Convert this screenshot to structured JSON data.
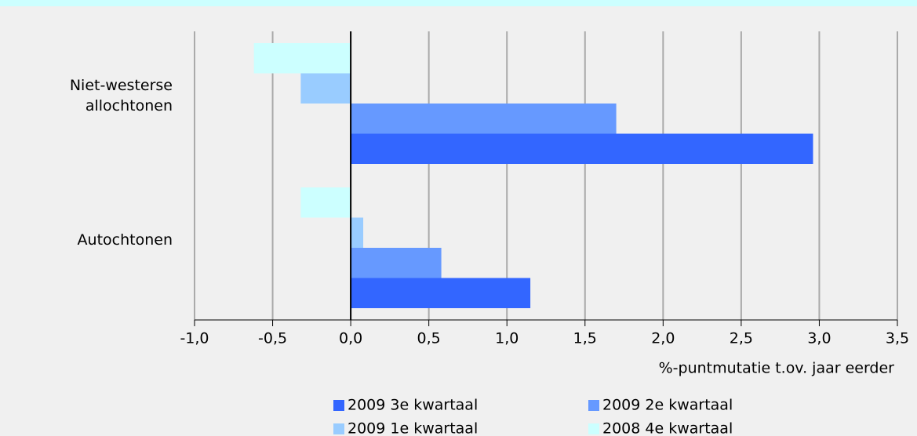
{
  "chart_data": {
    "type": "bar",
    "orientation": "horizontal",
    "categories": [
      "Niet-westerse allochtonen",
      "Autochtonen"
    ],
    "series": [
      {
        "name": "2009 3e kwartaal",
        "color": "#3366ff",
        "values": [
          2.96,
          1.15
        ]
      },
      {
        "name": "2009 2e kwartaal",
        "color": "#6699ff",
        "values": [
          1.7,
          0.58
        ]
      },
      {
        "name": "2009 1e kwartaal",
        "color": "#99ccff",
        "values": [
          -0.32,
          0.08
        ]
      },
      {
        "name": "2008 4e kwartaal",
        "color": "#ccffff",
        "values": [
          -0.62,
          -0.32
        ]
      }
    ],
    "xlabel": "%-puntmutatie t.ov. jaar eerder",
    "xlim": [
      -1.0,
      3.5
    ],
    "xticks": [
      {
        "value": -1.0,
        "label": "-1,0"
      },
      {
        "value": -0.5,
        "label": "-0,5"
      },
      {
        "value": 0.0,
        "label": "0,0"
      },
      {
        "value": 0.5,
        "label": "0,5"
      },
      {
        "value": 1.0,
        "label": "1,0"
      },
      {
        "value": 1.5,
        "label": "1,5"
      },
      {
        "value": 2.0,
        "label": "2,0"
      },
      {
        "value": 2.5,
        "label": "2,5"
      },
      {
        "value": 3.0,
        "label": "3,0"
      },
      {
        "value": 3.5,
        "label": "3,5"
      }
    ],
    "grid": true
  }
}
